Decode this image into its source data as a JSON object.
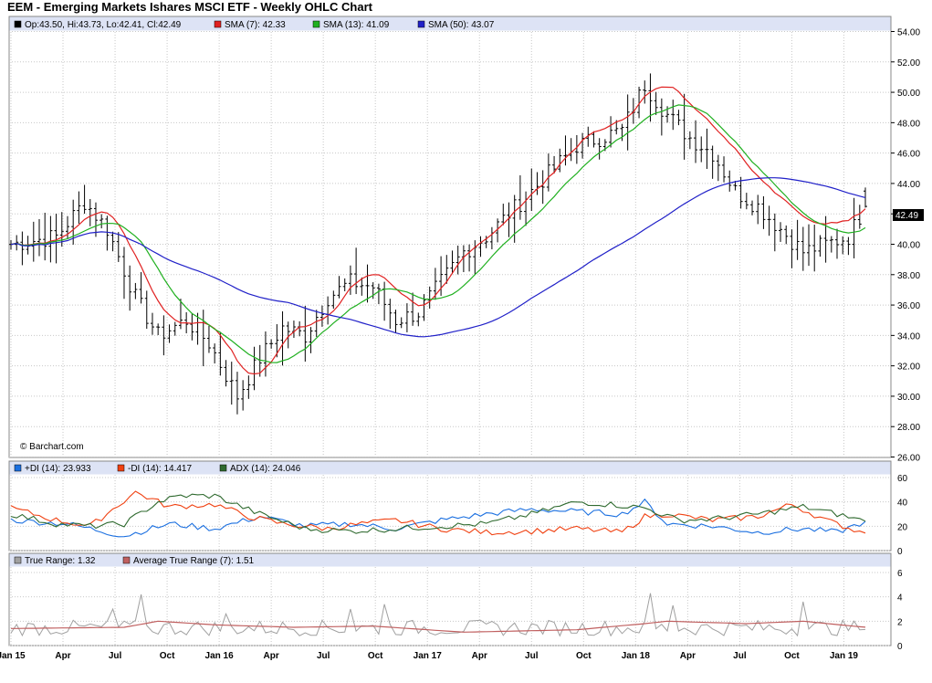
{
  "title": "EEM - Emerging Markets Ishares MSCI ETF - Weekly OHLC Chart",
  "watermark": "© Barchart.com",
  "last_price_label": "42.49",
  "legends": {
    "price": [
      {
        "text": "Op:43.50, Hi:43.73, Lo:42.41, Cl:42.49",
        "color": "#000000"
      },
      {
        "text": "SMA (7): 42.33",
        "color": "#e02020"
      },
      {
        "text": "SMA (13): 41.09",
        "color": "#20b020"
      },
      {
        "text": "SMA (50): 43.07",
        "color": "#2020c8"
      }
    ],
    "dmi": [
      {
        "text": "+DI (14): 23.933",
        "color": "#1a6fe0"
      },
      {
        "text": "-DI (14): 14.417",
        "color": "#f04010"
      },
      {
        "text": "ADX (14): 24.046",
        "color": "#2f6a2f"
      }
    ],
    "tr": [
      {
        "text": "True Range: 1.32",
        "color": "#a0a0a0"
      },
      {
        "text": "Average True Range (7): 1.51",
        "color": "#c06060"
      }
    ]
  },
  "chart_data": [
    {
      "type": "ohlc",
      "title": "EEM - Emerging Markets Ishares MSCI ETF - Weekly OHLC Chart",
      "ylim": [
        26,
        54
      ],
      "yticks": [
        "26.00",
        "28.00",
        "30.00",
        "32.00",
        "34.00",
        "36.00",
        "38.00",
        "40.00",
        "42.00",
        "44.00",
        "46.00",
        "48.00",
        "50.00",
        "52.00",
        "54.00"
      ],
      "x_ticks": [
        "Jan 15",
        "Apr",
        "Jul",
        "Oct",
        "Jan 16",
        "Apr",
        "Jul",
        "Oct",
        "Jan 17",
        "Apr",
        "Jul",
        "Oct",
        "Jan 18",
        "Apr",
        "Jul",
        "Oct",
        "Jan 19"
      ],
      "close_anchors": [
        [
          0,
          40.0
        ],
        [
          8,
          40.5
        ],
        [
          13,
          42.8
        ],
        [
          17,
          41.0
        ],
        [
          22,
          36.5
        ],
        [
          26,
          34.0
        ],
        [
          31,
          35.0
        ],
        [
          35,
          33.5
        ],
        [
          40,
          30.0
        ],
        [
          44,
          32.5
        ],
        [
          48,
          34.5
        ],
        [
          52,
          34.0
        ],
        [
          56,
          36.5
        ],
        [
          60,
          37.5
        ],
        [
          64,
          37.2
        ],
        [
          68,
          35.0
        ],
        [
          72,
          35.5
        ],
        [
          76,
          37.5
        ],
        [
          80,
          39.5
        ],
        [
          84,
          40.5
        ],
        [
          88,
          42.0
        ],
        [
          92,
          43.5
        ],
        [
          96,
          45.0
        ],
        [
          100,
          46.5
        ],
        [
          104,
          47.0
        ],
        [
          108,
          47.5
        ],
        [
          112,
          50.5
        ],
        [
          116,
          48.5
        ],
        [
          120,
          47.0
        ],
        [
          124,
          46.0
        ],
        [
          128,
          43.5
        ],
        [
          132,
          42.5
        ],
        [
          136,
          41.0
        ],
        [
          140,
          39.5
        ],
        [
          144,
          40.0
        ],
        [
          148,
          40.5
        ],
        [
          151,
          42.49
        ]
      ],
      "last_bar": {
        "open": 43.5,
        "high": 43.73,
        "low": 42.41,
        "close": 42.49
      },
      "series": [
        {
          "name": "SMA (7)",
          "last": 42.33,
          "color": "#e02020"
        },
        {
          "name": "SMA (13)",
          "last": 41.09,
          "color": "#20b020"
        },
        {
          "name": "SMA (50)",
          "last": 43.07,
          "color": "#2020c8"
        }
      ]
    },
    {
      "type": "line",
      "ylim": [
        0,
        60
      ],
      "yticks": [
        "0",
        "20",
        "40",
        "60"
      ],
      "series": [
        {
          "name": "+DI (14)",
          "last": 23.933,
          "color": "#1a6fe0",
          "anchors": [
            [
              0,
              25
            ],
            [
              10,
              22
            ],
            [
              20,
              12
            ],
            [
              28,
              22
            ],
            [
              36,
              18
            ],
            [
              44,
              28
            ],
            [
              52,
              20
            ],
            [
              60,
              22
            ],
            [
              68,
              18
            ],
            [
              76,
              25
            ],
            [
              84,
              30
            ],
            [
              92,
              34
            ],
            [
              100,
              32
            ],
            [
              108,
              30
            ],
            [
              112,
              40
            ],
            [
              116,
              22
            ],
            [
              124,
              20
            ],
            [
              132,
              15
            ],
            [
              140,
              18
            ],
            [
              146,
              15
            ],
            [
              151,
              24
            ]
          ]
        },
        {
          "name": "-DI (14)",
          "last": 14.417,
          "color": "#f04010",
          "anchors": [
            [
              0,
              35
            ],
            [
              8,
              25
            ],
            [
              14,
              20
            ],
            [
              22,
              48
            ],
            [
              28,
              36
            ],
            [
              36,
              38
            ],
            [
              42,
              28
            ],
            [
              48,
              22
            ],
            [
              56,
              18
            ],
            [
              62,
              22
            ],
            [
              68,
              25
            ],
            [
              76,
              18
            ],
            [
              84,
              15
            ],
            [
              92,
              16
            ],
            [
              100,
              18
            ],
            [
              108,
              15
            ],
            [
              112,
              28
            ],
            [
              116,
              30
            ],
            [
              124,
              25
            ],
            [
              132,
              28
            ],
            [
              138,
              38
            ],
            [
              144,
              25
            ],
            [
              151,
              14
            ]
          ]
        },
        {
          "name": "ADX (14)",
          "last": 24.046,
          "color": "#2f6a2f",
          "anchors": [
            [
              0,
              30
            ],
            [
              8,
              22
            ],
            [
              14,
              20
            ],
            [
              20,
              22
            ],
            [
              26,
              40
            ],
            [
              30,
              45
            ],
            [
              36,
              45
            ],
            [
              44,
              30
            ],
            [
              52,
              18
            ],
            [
              60,
              16
            ],
            [
              68,
              18
            ],
            [
              76,
              20
            ],
            [
              84,
              22
            ],
            [
              92,
              30
            ],
            [
              100,
              40
            ],
            [
              106,
              38
            ],
            [
              112,
              35
            ],
            [
              118,
              25
            ],
            [
              124,
              26
            ],
            [
              132,
              30
            ],
            [
              140,
              36
            ],
            [
              146,
              30
            ],
            [
              151,
              24
            ]
          ]
        }
      ]
    },
    {
      "type": "line",
      "ylim": [
        0,
        6
      ],
      "yticks": [
        "0",
        "2",
        "4",
        "6"
      ],
      "series": [
        {
          "name": "True Range",
          "last": 1.32,
          "color": "#a0a0a0",
          "spikes": [
            [
              18,
              3.0
            ],
            [
              23,
              4.2
            ],
            [
              38,
              2.6
            ],
            [
              60,
              3.0
            ],
            [
              66,
              3.4
            ],
            [
              113,
              4.3
            ],
            [
              117,
              3.3
            ],
            [
              140,
              3.6
            ]
          ]
        },
        {
          "name": "Average True Range (7)",
          "last": 1.51,
          "color": "#c06060",
          "anchors": [
            [
              0,
              1.4
            ],
            [
              20,
              1.5
            ],
            [
              26,
              2.0
            ],
            [
              36,
              1.7
            ],
            [
              50,
              1.5
            ],
            [
              64,
              1.6
            ],
            [
              80,
              1.1
            ],
            [
              100,
              1.3
            ],
            [
              112,
              1.8
            ],
            [
              116,
              2.0
            ],
            [
              130,
              1.8
            ],
            [
              140,
              2.0
            ],
            [
              151,
              1.5
            ]
          ]
        }
      ]
    }
  ]
}
